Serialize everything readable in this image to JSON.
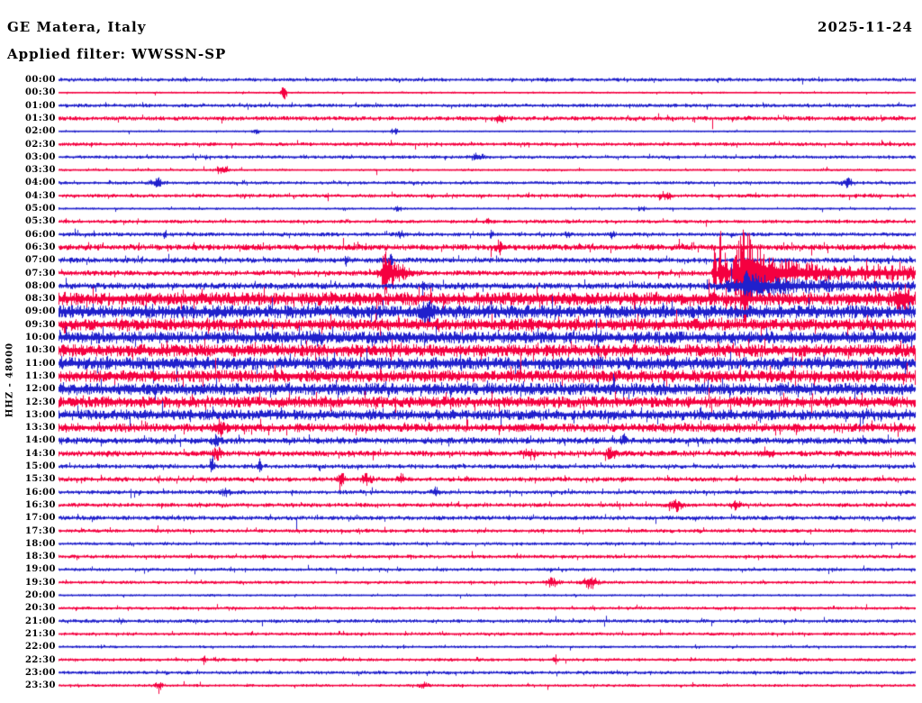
{
  "header": {
    "station": "GE Matera, Italy",
    "date": "2025-11-24",
    "filter_label": "Applied filter: WWSSN-SP"
  },
  "colors": {
    "blue": "#2020cc",
    "red": "#f50040",
    "text": "#000000",
    "background": "#ffffff"
  },
  "chart_data": {
    "type": "line",
    "subtype": "helicorder-seismogram",
    "station": "GE Matera, Italy",
    "date": "2025-11-24",
    "filter": "WWSSN-SP",
    "channel_scale": "HHZ - 48000",
    "minutes_per_row": 30,
    "row_color_pattern": [
      "blue",
      "red"
    ],
    "rows": [
      {
        "label": "00:00",
        "color": "blue",
        "noise": 1.8,
        "events": []
      },
      {
        "label": "00:30",
        "color": "red",
        "noise": 1.0,
        "events": [
          {
            "type": "spike",
            "t": 0.263,
            "amp": 11,
            "w": 1.8
          }
        ]
      },
      {
        "label": "01:00",
        "color": "blue",
        "noise": 1.8,
        "events": []
      },
      {
        "label": "01:30",
        "color": "red",
        "noise": 2.2,
        "events": [
          {
            "type": "burst",
            "t": 0.515,
            "amp": 4,
            "w": 4
          }
        ]
      },
      {
        "label": "02:00",
        "color": "blue",
        "noise": 1.0,
        "events": [
          {
            "type": "burst",
            "t": 0.231,
            "amp": 2.5,
            "w": 3
          },
          {
            "type": "burst",
            "t": 0.392,
            "amp": 3,
            "w": 3
          }
        ]
      },
      {
        "label": "02:30",
        "color": "red",
        "noise": 1.8,
        "events": []
      },
      {
        "label": "03:00",
        "color": "blue",
        "noise": 1.7,
        "events": [
          {
            "type": "burst",
            "t": 0.489,
            "amp": 3.5,
            "w": 5
          }
        ]
      },
      {
        "label": "03:30",
        "color": "red",
        "noise": 1.2,
        "events": [
          {
            "type": "burst",
            "t": 0.191,
            "amp": 4.5,
            "w": 5
          }
        ]
      },
      {
        "label": "04:00",
        "color": "blue",
        "noise": 1.6,
        "events": [
          {
            "type": "burst",
            "t": 0.115,
            "amp": 4.5,
            "w": 5
          },
          {
            "type": "burst",
            "t": 0.922,
            "amp": 4,
            "w": 5
          }
        ]
      },
      {
        "label": "04:30",
        "color": "red",
        "noise": 1.8,
        "events": [
          {
            "type": "burst",
            "t": 0.707,
            "amp": 3.5,
            "w": 4
          }
        ]
      },
      {
        "label": "05:00",
        "color": "blue",
        "noise": 1.2,
        "events": [
          {
            "type": "burst",
            "t": 0.396,
            "amp": 3,
            "w": 4
          },
          {
            "type": "burst",
            "t": 0.68,
            "amp": 2.5,
            "w": 3
          }
        ]
      },
      {
        "label": "05:30",
        "color": "red",
        "noise": 1.8,
        "events": [
          {
            "type": "spike",
            "t": 0.5,
            "amp": 3,
            "w": 1.5
          }
        ]
      },
      {
        "label": "06:00",
        "color": "blue",
        "noise": 2.0,
        "events": [
          {
            "type": "spike",
            "t": 0.124,
            "amp": 4,
            "w": 1.5
          },
          {
            "type": "burst",
            "t": 0.4,
            "amp": 3,
            "w": 3
          },
          {
            "type": "spike",
            "t": 0.505,
            "amp": 4,
            "w": 1.5
          },
          {
            "type": "spike",
            "t": 0.594,
            "amp": 3.5,
            "w": 1.5
          },
          {
            "type": "spike",
            "t": 0.647,
            "amp": 4,
            "w": 1.5
          }
        ]
      },
      {
        "label": "06:30",
        "color": "red",
        "noise": 3.0,
        "events": [
          {
            "type": "burst",
            "t": 0.515,
            "amp": 5,
            "w": 4
          }
        ]
      },
      {
        "label": "07:00",
        "color": "blue",
        "noise": 2.6,
        "events": [
          {
            "type": "spike",
            "t": 0.3365,
            "amp": 4.5,
            "w": 1.5
          },
          {
            "type": "spike",
            "t": 0.387,
            "amp": 6,
            "w": 1.8
          }
        ]
      },
      {
        "label": "07:30",
        "color": "red",
        "noise": 2.5,
        "events": [
          {
            "type": "spike",
            "t": 0.3805,
            "amp": 14,
            "w": 1.8
          },
          {
            "type": "burst",
            "t": 0.383,
            "amp": 11,
            "w": 5
          },
          {
            "type": "burst",
            "t": 0.395,
            "amp": 7,
            "w": 12
          },
          {
            "type": "spike",
            "t": 0.7655,
            "amp": 46,
            "w": 1.2
          },
          {
            "type": "spike",
            "t": 0.7725,
            "amp": 40,
            "w": 1.2
          },
          {
            "type": "spike",
            "t": 0.779,
            "amp": 30,
            "w": 1.2
          },
          {
            "type": "spike",
            "t": 0.7905,
            "amp": 50,
            "w": 1.4
          },
          {
            "type": "burst",
            "t": 0.802,
            "amp": 22,
            "w": 12
          },
          {
            "type": "decay",
            "t": 0.795,
            "amp": 27,
            "len": 60,
            "sustain": 5
          }
        ]
      },
      {
        "label": "08:00",
        "color": "blue",
        "noise": 3.2,
        "events": [
          {
            "type": "spike",
            "t": 0.425,
            "amp": 7,
            "w": 1.5
          },
          {
            "type": "burst",
            "t": 0.8,
            "amp": 7,
            "w": 15
          },
          {
            "type": "decay",
            "t": 0.8,
            "amp": 7,
            "len": 120,
            "sustain": 2
          }
        ]
      },
      {
        "label": "08:30",
        "color": "red",
        "noise": 6.5,
        "events": [
          {
            "type": "burst",
            "t": 0.985,
            "amp": 11,
            "w": 6
          }
        ]
      },
      {
        "label": "09:00",
        "color": "blue",
        "noise": 6.5,
        "events": [
          {
            "type": "burst",
            "t": 0.429,
            "amp": 9,
            "w": 5
          }
        ]
      },
      {
        "label": "09:30",
        "color": "red",
        "noise": 6.0,
        "events": []
      },
      {
        "label": "10:00",
        "color": "blue",
        "noise": 6.0,
        "events": [
          {
            "type": "burst",
            "t": 0.3,
            "amp": 7,
            "w": 4
          }
        ]
      },
      {
        "label": "10:30",
        "color": "red",
        "noise": 6.2,
        "events": []
      },
      {
        "label": "11:00",
        "color": "blue",
        "noise": 6.2,
        "events": []
      },
      {
        "label": "11:30",
        "color": "red",
        "noise": 6.0,
        "events": []
      },
      {
        "label": "12:00",
        "color": "blue",
        "noise": 6.0,
        "events": []
      },
      {
        "label": "12:30",
        "color": "red",
        "noise": 5.5,
        "events": []
      },
      {
        "label": "13:00",
        "color": "blue",
        "noise": 5.2,
        "events": []
      },
      {
        "label": "13:30",
        "color": "red",
        "noise": 4.2,
        "events": [
          {
            "type": "burst",
            "t": 0.187,
            "amp": 5.5,
            "w": 4
          }
        ]
      },
      {
        "label": "14:00",
        "color": "blue",
        "noise": 3.2,
        "events": [
          {
            "type": "burst",
            "t": 0.184,
            "amp": 4,
            "w": 3
          },
          {
            "type": "spike",
            "t": 0.66,
            "amp": 5,
            "w": 1.5
          }
        ]
      },
      {
        "label": "14:30",
        "color": "red",
        "noise": 2.8,
        "events": [
          {
            "type": "burst",
            "t": 0.185,
            "amp": 4.5,
            "w": 4
          },
          {
            "type": "burst",
            "t": 0.55,
            "amp": 4,
            "w": 4
          },
          {
            "type": "burst",
            "t": 0.645,
            "amp": 4,
            "w": 4
          },
          {
            "type": "burst",
            "t": 0.83,
            "amp": 4,
            "w": 4
          }
        ]
      },
      {
        "label": "15:00",
        "color": "blue",
        "noise": 2.2,
        "events": [
          {
            "type": "spike",
            "t": 0.179,
            "amp": 11,
            "w": 1.5
          },
          {
            "type": "spike",
            "t": 0.2345,
            "amp": 7,
            "w": 1.5
          }
        ]
      },
      {
        "label": "15:30",
        "color": "red",
        "noise": 2.2,
        "events": [
          {
            "type": "burst",
            "t": 0.33,
            "amp": 5,
            "w": 3
          },
          {
            "type": "burst",
            "t": 0.36,
            "amp": 4.5,
            "w": 4
          },
          {
            "type": "burst",
            "t": 0.4,
            "amp": 4,
            "w": 3
          }
        ]
      },
      {
        "label": "16:00",
        "color": "blue",
        "noise": 2.0,
        "events": [
          {
            "type": "burst",
            "t": 0.195,
            "amp": 4,
            "w": 3
          },
          {
            "type": "burst",
            "t": 0.44,
            "amp": 4,
            "w": 3
          }
        ]
      },
      {
        "label": "16:30",
        "color": "red",
        "noise": 2.0,
        "events": [
          {
            "type": "burst",
            "t": 0.72,
            "amp": 5.5,
            "w": 5
          },
          {
            "type": "burst",
            "t": 0.79,
            "amp": 4,
            "w": 4
          }
        ]
      },
      {
        "label": "17:00",
        "color": "blue",
        "noise": 2.2,
        "events": []
      },
      {
        "label": "17:30",
        "color": "red",
        "noise": 1.8,
        "events": []
      },
      {
        "label": "18:00",
        "color": "blue",
        "noise": 1.6,
        "events": []
      },
      {
        "label": "18:30",
        "color": "red",
        "noise": 1.8,
        "events": []
      },
      {
        "label": "19:00",
        "color": "blue",
        "noise": 1.6,
        "events": []
      },
      {
        "label": "19:30",
        "color": "red",
        "noise": 1.5,
        "events": [
          {
            "type": "burst",
            "t": 0.576,
            "amp": 4,
            "w": 5
          },
          {
            "type": "burst",
            "t": 0.621,
            "amp": 6,
            "w": 6
          }
        ]
      },
      {
        "label": "20:00",
        "color": "blue",
        "noise": 1.2,
        "events": []
      },
      {
        "label": "20:30",
        "color": "red",
        "noise": 1.5,
        "events": []
      },
      {
        "label": "21:00",
        "color": "blue",
        "noise": 1.8,
        "events": []
      },
      {
        "label": "21:30",
        "color": "red",
        "noise": 1.6,
        "events": []
      },
      {
        "label": "22:00",
        "color": "blue",
        "noise": 1.3,
        "events": []
      },
      {
        "label": "22:30",
        "color": "red",
        "noise": 1.6,
        "events": [
          {
            "type": "spike",
            "t": 0.169,
            "amp": 5,
            "w": 1.4
          },
          {
            "type": "spike",
            "t": 0.58,
            "amp": 4,
            "w": 1.4
          }
        ]
      },
      {
        "label": "23:00",
        "color": "blue",
        "noise": 1.7,
        "events": []
      },
      {
        "label": "23:30",
        "color": "red",
        "noise": 1.4,
        "events": [
          {
            "type": "burst",
            "t": 0.117,
            "amp": 3.5,
            "w": 3
          },
          {
            "type": "burst",
            "t": 0.426,
            "amp": 3.5,
            "w": 3
          }
        ]
      }
    ]
  }
}
